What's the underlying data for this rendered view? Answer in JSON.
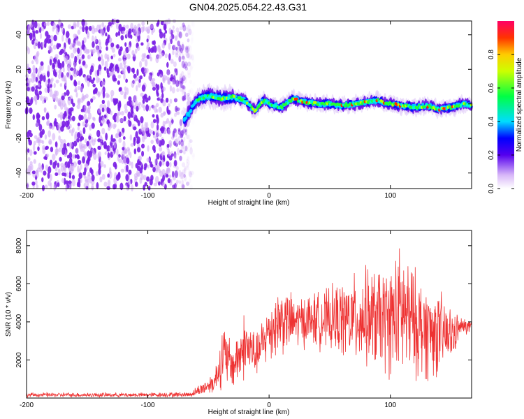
{
  "title": "GN04.2025.054.22.43.G31",
  "chart_data": [
    {
      "type": "heatmap",
      "xlabel": "Height of straight line (km)",
      "ylabel": "Frequency (Hz)",
      "xlim": [
        -200,
        167
      ],
      "ylim": [
        -49,
        48
      ],
      "xticks": [
        -200,
        -100,
        0,
        100
      ],
      "yticks": [
        -40,
        -20,
        0,
        20,
        40
      ],
      "colorbar": {
        "label": "Normalized spectral amplitude",
        "range": [
          0,
          1
        ],
        "ticks": [
          0.0,
          0.2,
          0.4,
          0.6,
          0.8
        ]
      },
      "noise_region_x": [
        -200,
        -62
      ],
      "signal_track": [
        {
          "x": -70,
          "y": -10
        },
        {
          "x": -65,
          "y": -4
        },
        {
          "x": -60,
          "y": 2
        },
        {
          "x": -50,
          "y": 5
        },
        {
          "x": -40,
          "y": 3
        },
        {
          "x": -30,
          "y": 4
        },
        {
          "x": -20,
          "y": 2
        },
        {
          "x": -12,
          "y": -4
        },
        {
          "x": -5,
          "y": 2
        },
        {
          "x": 0,
          "y": 0
        },
        {
          "x": 10,
          "y": -2
        },
        {
          "x": 20,
          "y": 3
        },
        {
          "x": 30,
          "y": 1
        },
        {
          "x": 40,
          "y": 0
        },
        {
          "x": 50,
          "y": 0
        },
        {
          "x": 60,
          "y": -1
        },
        {
          "x": 70,
          "y": 0
        },
        {
          "x": 80,
          "y": 1
        },
        {
          "x": 90,
          "y": 2
        },
        {
          "x": 100,
          "y": 0
        },
        {
          "x": 110,
          "y": -1
        },
        {
          "x": 120,
          "y": -2
        },
        {
          "x": 130,
          "y": -1
        },
        {
          "x": 140,
          "y": -3
        },
        {
          "x": 150,
          "y": -2
        },
        {
          "x": 160,
          "y": 0
        },
        {
          "x": 167,
          "y": -1
        }
      ]
    },
    {
      "type": "line",
      "xlabel": "Height of straight line (km)",
      "ylabel": "SNR (10 * v/v)",
      "xlim": [
        -200,
        167
      ],
      "ylim": [
        0,
        8800
      ],
      "xticks": [
        -200,
        -100,
        0,
        100
      ],
      "yticks": [
        2000,
        4000,
        6000,
        8000
      ],
      "color": "#ee3333",
      "series_envelope": [
        {
          "x": -200,
          "min": 30,
          "max": 300
        },
        {
          "x": -150,
          "min": 30,
          "max": 300
        },
        {
          "x": -100,
          "min": 30,
          "max": 300
        },
        {
          "x": -65,
          "min": 30,
          "max": 350
        },
        {
          "x": -55,
          "min": 100,
          "max": 900
        },
        {
          "x": -45,
          "min": 200,
          "max": 1500
        },
        {
          "x": -38,
          "min": 300,
          "max": 4300
        },
        {
          "x": -30,
          "min": 300,
          "max": 3000
        },
        {
          "x": -20,
          "min": 700,
          "max": 4900
        },
        {
          "x": -10,
          "min": 1000,
          "max": 3500
        },
        {
          "x": 0,
          "min": 1600,
          "max": 5500
        },
        {
          "x": 10,
          "min": 2000,
          "max": 6300
        },
        {
          "x": 20,
          "min": 2300,
          "max": 5600
        },
        {
          "x": 30,
          "min": 2500,
          "max": 5700
        },
        {
          "x": 40,
          "min": 2400,
          "max": 5800
        },
        {
          "x": 50,
          "min": 2200,
          "max": 6000
        },
        {
          "x": 60,
          "min": 1800,
          "max": 6500
        },
        {
          "x": 70,
          "min": 1500,
          "max": 6800
        },
        {
          "x": 80,
          "min": 1300,
          "max": 7200
        },
        {
          "x": 90,
          "min": 1000,
          "max": 7300
        },
        {
          "x": 100,
          "min": 700,
          "max": 7500
        },
        {
          "x": 110,
          "min": 300,
          "max": 8700
        },
        {
          "x": 120,
          "min": 600,
          "max": 7200
        },
        {
          "x": 130,
          "min": 500,
          "max": 6500
        },
        {
          "x": 140,
          "min": 800,
          "max": 6000
        },
        {
          "x": 150,
          "min": 1500,
          "max": 5000
        },
        {
          "x": 158,
          "min": 3200,
          "max": 4300
        },
        {
          "x": 167,
          "min": 3300,
          "max": 4200
        }
      ]
    }
  ]
}
